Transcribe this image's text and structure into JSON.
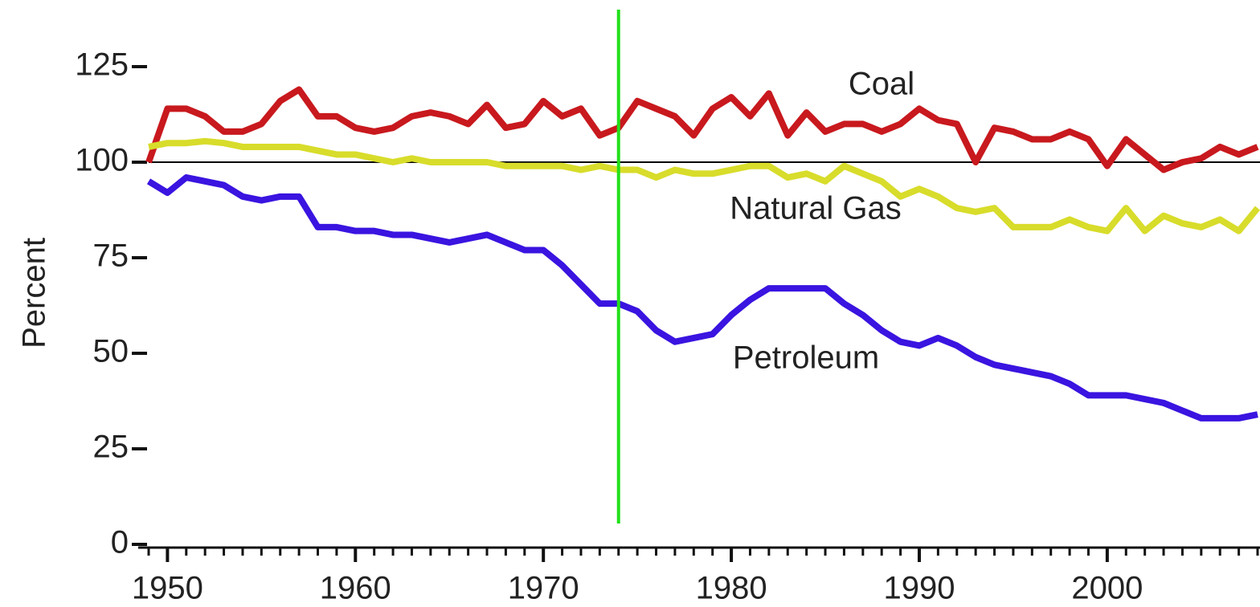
{
  "chart_data": {
    "type": "line",
    "y_label": "Percent",
    "x": [
      1949,
      1950,
      1951,
      1952,
      1953,
      1954,
      1955,
      1956,
      1957,
      1958,
      1959,
      1960,
      1961,
      1962,
      1963,
      1964,
      1965,
      1966,
      1967,
      1968,
      1969,
      1970,
      1971,
      1972,
      1973,
      1974,
      1975,
      1976,
      1977,
      1978,
      1979,
      1980,
      1981,
      1982,
      1983,
      1984,
      1985,
      1986,
      1987,
      1988,
      1989,
      1990,
      1991,
      1992,
      1993,
      1994,
      1995,
      1996,
      1997,
      1998,
      1999,
      2000,
      2001,
      2002,
      2003,
      2004,
      2005,
      2006,
      2007,
      2008
    ],
    "series": [
      {
        "name": "Coal",
        "color": "#c8191e",
        "values": [
          100,
          114,
          114,
          112,
          108,
          108,
          110,
          116,
          119,
          112,
          112,
          109,
          108,
          109,
          112,
          113,
          112,
          110,
          115,
          109,
          110,
          116,
          112,
          114,
          107,
          109,
          116,
          114,
          112,
          107,
          114,
          117,
          112,
          118,
          107,
          113,
          108,
          110,
          110,
          108,
          110,
          114,
          111,
          110,
          100,
          109,
          108,
          106,
          106,
          108,
          106,
          99,
          106,
          102,
          98,
          100,
          101,
          104,
          102,
          104
        ]
      },
      {
        "name": "Natural Gas",
        "color": "#d8dc2a",
        "values": [
          104,
          105,
          105,
          105.5,
          105,
          104,
          104,
          104,
          104,
          103,
          102,
          102,
          101,
          100,
          101,
          100,
          100,
          100,
          100,
          99,
          99,
          99,
          99,
          98,
          99,
          98,
          98,
          96,
          98,
          97,
          97,
          98,
          99,
          99,
          96,
          97,
          95,
          99,
          97,
          95,
          91,
          93,
          91,
          88,
          87,
          88,
          83,
          83,
          83,
          85,
          83,
          82,
          88,
          82,
          86,
          84,
          83,
          85,
          82,
          88
        ]
      },
      {
        "name": "Petroleum",
        "color": "#3a14e0",
        "values": [
          95,
          92,
          96,
          95,
          94,
          91,
          90,
          91,
          91,
          83,
          83,
          82,
          82,
          81,
          81,
          80,
          79,
          80,
          81,
          79,
          77,
          77,
          73,
          68,
          63,
          63,
          61,
          56,
          53,
          54,
          55,
          60,
          64,
          67,
          67,
          67,
          67,
          63,
          60,
          56,
          53,
          52,
          54,
          52,
          49,
          47,
          46,
          45,
          44,
          42,
          39,
          39,
          39,
          38,
          37,
          35,
          33,
          33,
          33,
          34
        ]
      }
    ],
    "xlim": [
      1949,
      2008
    ],
    "xticks": [
      1950,
      1960,
      1970,
      1980,
      1990,
      2000
    ],
    "ylim": [
      0,
      135
    ],
    "yticks": [
      0,
      25,
      50,
      75,
      100,
      125
    ],
    "reference_line": 100,
    "vline": 1974,
    "vline_color": "#22e01a"
  }
}
